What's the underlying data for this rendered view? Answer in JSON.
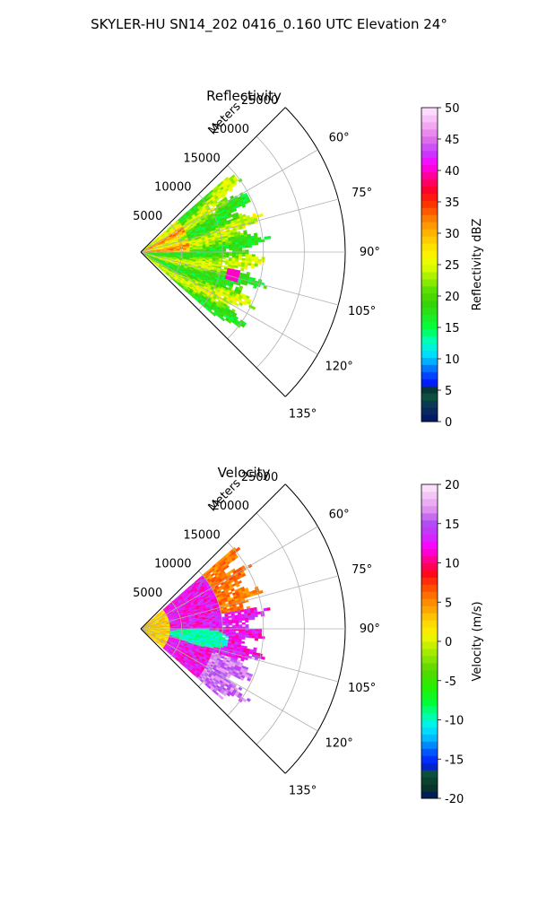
{
  "suptitle": "SKYLER-HU  SN14_202  0416_0.160 UTC Elevation 24°",
  "chart_data": [
    {
      "type": "heatmap",
      "projection": "polar-sector",
      "title": "Reflectivity",
      "radial_label": "Meters",
      "radial_ticks": [
        "5000",
        "10000",
        "15000",
        "20000",
        "25000"
      ],
      "radial_tick_values": [
        5000,
        10000,
        15000,
        20000,
        25000
      ],
      "rlim": [
        0,
        25000
      ],
      "angle_ticks": [
        "60°",
        "75°",
        "90°",
        "105°",
        "120°",
        "135°"
      ],
      "angle_tick_values": [
        60,
        75,
        90,
        105,
        120,
        135
      ],
      "theta_range": [
        45,
        135
      ],
      "grid": true,
      "colorbar": {
        "label": "Reflectivity dBZ",
        "ticks": [
          "0",
          "5",
          "10",
          "15",
          "20",
          "25",
          "30",
          "35",
          "40",
          "45",
          "50"
        ],
        "range": [
          0,
          50
        ],
        "colormap": "pyart_NWSRef"
      },
      "data_extent_m": 16000
    },
    {
      "type": "heatmap",
      "projection": "polar-sector",
      "title": "Velocity",
      "radial_label": "Meters",
      "radial_ticks": [
        "5000",
        "10000",
        "15000",
        "20000",
        "25000"
      ],
      "radial_tick_values": [
        5000,
        10000,
        15000,
        20000,
        25000
      ],
      "rlim": [
        0,
        25000
      ],
      "angle_ticks": [
        "60°",
        "75°",
        "90°",
        "105°",
        "120°",
        "135°"
      ],
      "angle_tick_values": [
        60,
        75,
        90,
        105,
        120,
        135
      ],
      "theta_range": [
        45,
        135
      ],
      "grid": true,
      "colorbar": {
        "label": "Velocity (m/s)",
        "ticks": [
          "-20",
          "-15",
          "-10",
          "-5",
          "0",
          "5",
          "10",
          "15",
          "20"
        ],
        "range": [
          -20,
          20
        ],
        "colormap": "pyart_BuDRd18"
      },
      "data_extent_m": 16000
    }
  ]
}
